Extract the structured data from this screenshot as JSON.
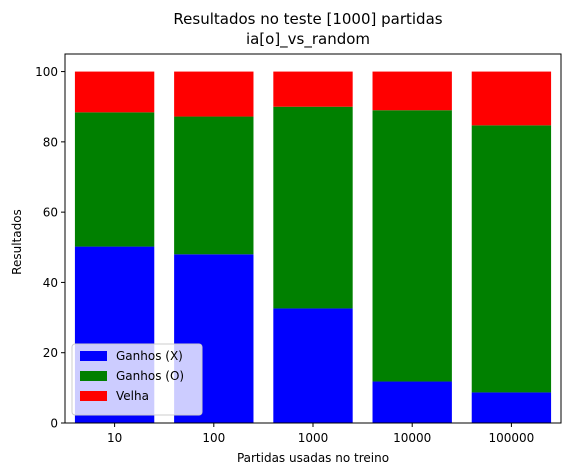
{
  "chart_data": {
    "type": "bar",
    "stacked": true,
    "title": "Resultados no teste [1000] partidas",
    "subtitle": "ia[o]_vs_random",
    "xlabel": "Partidas usadas no treino",
    "ylabel": "Resultados",
    "categories": [
      "10",
      "100",
      "1000",
      "10000",
      "100000"
    ],
    "ylim": [
      0,
      105
    ],
    "yticks": [
      0,
      20,
      40,
      60,
      80,
      100
    ],
    "grid": false,
    "legend_position": "lower-left",
    "series": [
      {
        "name": "Ganhos (X)",
        "color": "#0000ff",
        "values": [
          50.2,
          48.0,
          32.6,
          11.8,
          8.7
        ]
      },
      {
        "name": "Ganhos (O)",
        "color": "#008000",
        "values": [
          38.2,
          39.2,
          57.4,
          77.2,
          76.0
        ]
      },
      {
        "name": "Velha",
        "color": "#ff0000",
        "values": [
          11.6,
          12.8,
          10.0,
          11.0,
          15.3
        ]
      }
    ]
  }
}
